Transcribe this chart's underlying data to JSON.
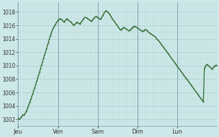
{
  "background_color": "#cde8e8",
  "line_color": "#2d6a2d",
  "grid_color_major": "#b8d4d4",
  "grid_color_minor": "#ccdede",
  "tick_label_color": "#333333",
  "ylim": [
    1001,
    1019.5
  ],
  "yticks": [
    1002,
    1004,
    1006,
    1008,
    1010,
    1012,
    1014,
    1016,
    1018
  ],
  "day_labels": [
    "Jeu",
    "Ven",
    "Sam",
    "Dim",
    "Lun"
  ],
  "day_positions": [
    0,
    0.2,
    0.4,
    0.6,
    0.8
  ],
  "pressure_values": [
    1002.2,
    1002.0,
    1002.1,
    1002.3,
    1002.5,
    1002.7,
    1002.6,
    1002.8,
    1003.1,
    1003.4,
    1003.8,
    1004.2,
    1004.6,
    1005.0,
    1005.4,
    1005.8,
    1006.3,
    1006.7,
    1007.2,
    1007.7,
    1008.1,
    1008.6,
    1009.1,
    1009.6,
    1010.1,
    1010.6,
    1011.1,
    1011.6,
    1012.0,
    1012.5,
    1013.0,
    1013.5,
    1014.0,
    1014.5,
    1014.9,
    1015.3,
    1015.6,
    1015.9,
    1016.1,
    1016.4,
    1016.6,
    1016.8,
    1016.9,
    1017.0,
    1016.9,
    1016.8,
    1016.6,
    1016.5,
    1016.7,
    1016.9,
    1017.0,
    1016.8,
    1016.7,
    1016.6,
    1016.5,
    1016.3,
    1016.1,
    1016.0,
    1016.2,
    1016.3,
    1016.5,
    1016.4,
    1016.3,
    1016.2,
    1016.4,
    1016.6,
    1016.8,
    1017.0,
    1017.2,
    1017.2,
    1017.1,
    1017.0,
    1016.9,
    1016.8,
    1016.7,
    1016.6,
    1016.8,
    1017.0,
    1017.2,
    1017.3,
    1017.3,
    1017.2,
    1017.1,
    1017.0,
    1016.9,
    1017.1,
    1017.4,
    1017.6,
    1017.9,
    1018.1,
    1018.2,
    1018.0,
    1017.9,
    1017.7,
    1017.5,
    1017.3,
    1017.0,
    1016.8,
    1016.6,
    1016.4,
    1016.2,
    1016.0,
    1015.8,
    1015.6,
    1015.4,
    1015.3,
    1015.5,
    1015.6,
    1015.7,
    1015.6,
    1015.5,
    1015.4,
    1015.3,
    1015.2,
    1015.3,
    1015.4,
    1015.6,
    1015.7,
    1015.8,
    1015.9,
    1015.8,
    1015.7,
    1015.6,
    1015.5,
    1015.4,
    1015.3,
    1015.2,
    1015.1,
    1015.2,
    1015.3,
    1015.4,
    1015.3,
    1015.2,
    1015.0,
    1014.9,
    1014.8,
    1014.7,
    1014.6,
    1014.5,
    1014.4,
    1014.3,
    1014.1,
    1013.9,
    1013.8,
    1013.6,
    1013.4,
    1013.2,
    1013.0,
    1012.8,
    1012.6,
    1012.4,
    1012.2,
    1012.0,
    1011.8,
    1011.6,
    1011.4,
    1011.2,
    1011.0,
    1010.8,
    1010.6,
    1010.4,
    1010.2,
    1010.0,
    1009.8,
    1009.6,
    1009.4,
    1009.2,
    1009.0,
    1008.8,
    1008.6,
    1008.4,
    1008.2,
    1008.0,
    1007.8,
    1007.6,
    1007.4,
    1007.2,
    1007.0,
    1006.8,
    1006.6,
    1006.4,
    1006.2,
    1006.0,
    1005.8,
    1005.6,
    1005.4,
    1005.2,
    1005.0,
    1004.8,
    1004.6,
    1009.6,
    1009.9,
    1010.1,
    1010.2,
    1010.0,
    1009.9,
    1009.8,
    1009.6,
    1009.5,
    1009.7,
    1009.9,
    1010.0,
    1010.1,
    1010.0
  ]
}
